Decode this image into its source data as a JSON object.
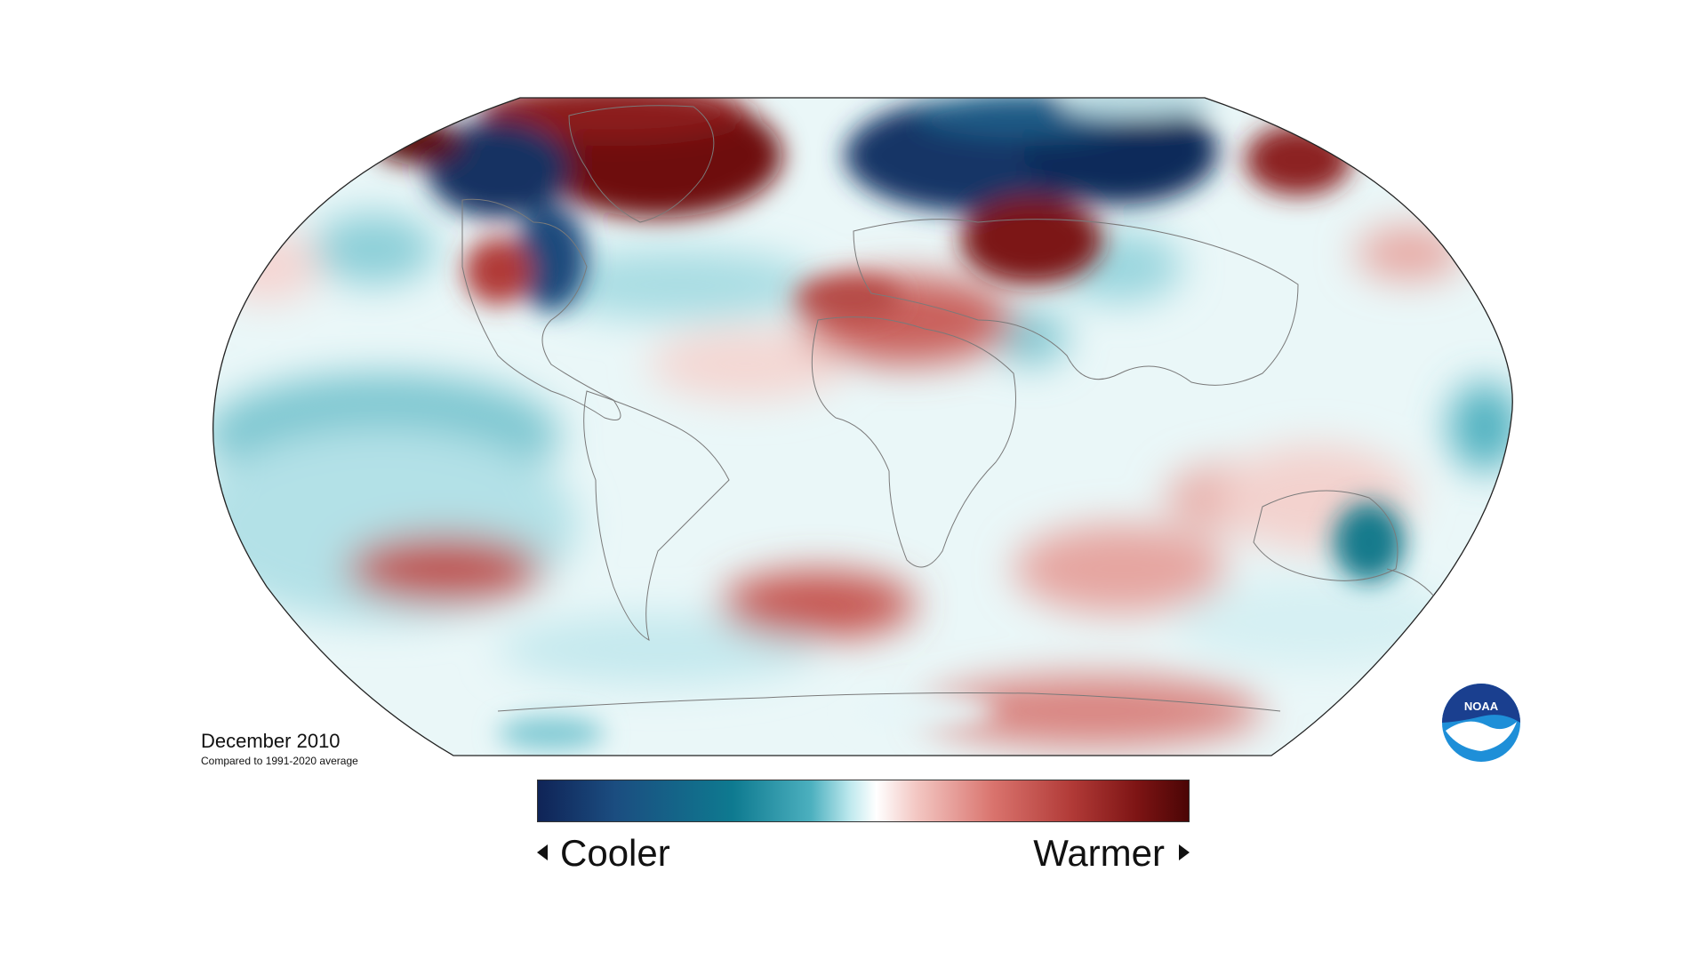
{
  "map": {
    "title": "December 2010",
    "subtitle": "Compared to 1991-2020 average",
    "projection": "Robinson",
    "variable": "surface temperature anomaly"
  },
  "legend": {
    "cooler_label": "Cooler",
    "warmer_label": "Warmer",
    "colors": [
      "#0f2356",
      "#1b4d80",
      "#0e7a90",
      "#4cb0bf",
      "#bfe9ee",
      "#ffffff",
      "#f3c8c4",
      "#d9736d",
      "#b13a37",
      "#7d1414",
      "#4a0505"
    ]
  },
  "logo": {
    "text": "NOAA",
    "colors": [
      "#1a3f8f",
      "#1e8fd8",
      "#ffffff"
    ]
  },
  "anomaly_regions": [
    {
      "name": "Greenland / NE Canada",
      "sign": "warmer",
      "intensity": "strong"
    },
    {
      "name": "Western Canada / Alaska",
      "sign": "cooler",
      "intensity": "strong"
    },
    {
      "name": "Northern Europe / Scandinavia",
      "sign": "cooler",
      "intensity": "strong"
    },
    {
      "name": "Siberia",
      "sign": "cooler",
      "intensity": "strong"
    },
    {
      "name": "Eastern Europe / Black Sea",
      "sign": "warmer",
      "intensity": "strong"
    },
    {
      "name": "Far East Russia",
      "sign": "warmer",
      "intensity": "strong"
    },
    {
      "name": "North Africa / Middle East",
      "sign": "warmer",
      "intensity": "moderate"
    },
    {
      "name": "Equatorial Pacific",
      "sign": "cooler",
      "intensity": "moderate"
    },
    {
      "name": "South Pacific",
      "sign": "warmer",
      "intensity": "moderate"
    },
    {
      "name": "South Atlantic",
      "sign": "warmer",
      "intensity": "moderate"
    },
    {
      "name": "Southern Indian Ocean",
      "sign": "warmer",
      "intensity": "moderate"
    },
    {
      "name": "Eastern Australia",
      "sign": "cooler",
      "intensity": "strong"
    },
    {
      "name": "Antarctica (East)",
      "sign": "warmer",
      "intensity": "moderate"
    }
  ]
}
